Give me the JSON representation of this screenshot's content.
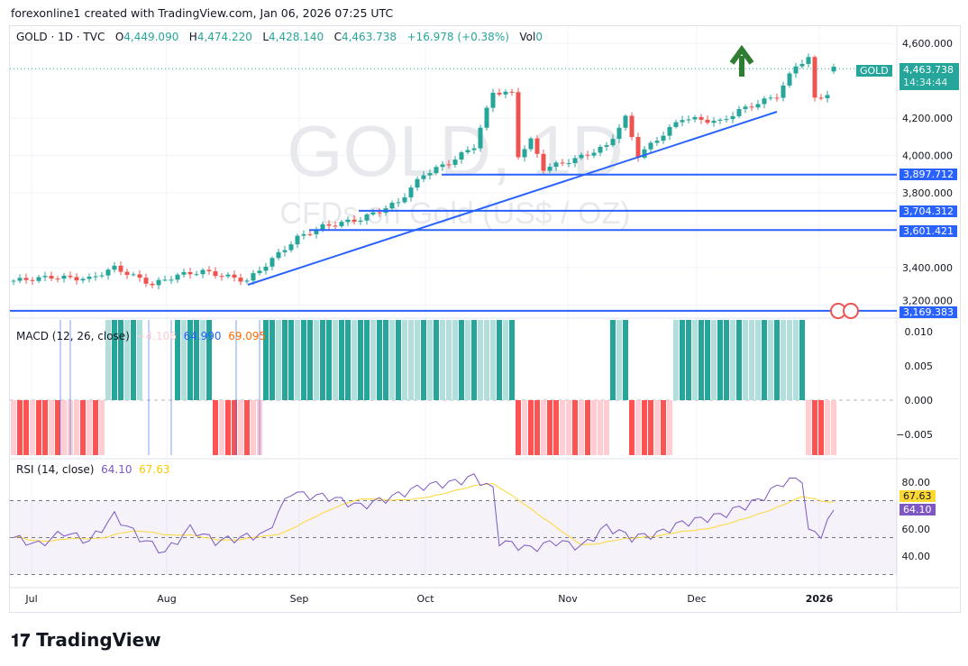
{
  "header": {
    "attribution": "forexonline1 created with TradingView.com, Jan 06, 2026 07:25 UTC"
  },
  "legend": {
    "symbol": "GOLD · 1D · TVC",
    "o_label": "O",
    "open": "4,449.090",
    "h_label": "H",
    "high": "4,474.220",
    "l_label": "L",
    "low": "4,428.140",
    "c_label": "C",
    "close": "4,463.738",
    "change": "+16.978 (+0.38%)",
    "vol_label": "Vol",
    "vol": "0"
  },
  "watermark": {
    "title": "GOLD, 1D",
    "subtitle": "CFDs on Gold (US$ / OZ)"
  },
  "price_axis": {
    "ticks": [
      "4,600.000",
      "4,200.000",
      "4,000.000",
      "3,800.000",
      "3,400.000",
      "3,200.000"
    ],
    "tick_values": [
      4600,
      4200,
      4000,
      3800,
      3400,
      3200
    ],
    "symbol_tag": "GOLD",
    "last_price": "4,463.738",
    "countdown": "14:34:44",
    "level_tags": [
      "3,897.712",
      "3,704.312",
      "3,601.421",
      "3,169.383"
    ],
    "level_values": [
      3897.712,
      3704.312,
      3601.421,
      3169.383
    ]
  },
  "time_axis": {
    "labels": [
      "Jul",
      "Aug",
      "Sep",
      "Oct",
      "Nov",
      "Dec",
      "2026"
    ]
  },
  "macd": {
    "label": "MACD (12, 26, close)",
    "hist": "−4.106",
    "macd": "64.990",
    "signal": "69.095",
    "ticks": [
      "0.010",
      "0.005",
      "0.000",
      "−0.005"
    ],
    "tick_values": [
      0.01,
      0.005,
      0,
      -0.005
    ]
  },
  "rsi": {
    "label": "RSI (14, close)",
    "value": "64.10",
    "ma": "67.63",
    "ticks": [
      "80.00",
      "60.00",
      "40.00"
    ],
    "tick_values": [
      80,
      60,
      40
    ],
    "tag_value": "64.10",
    "tag_ma": "67.63"
  },
  "colors": {
    "up": "#26a69a",
    "down": "#ef5350",
    "line": "#2962ff",
    "rsi": "#7e57c2",
    "rsi_ma": "#fdd835"
  },
  "chart_data": {
    "type": "candlestick",
    "price_keypoints": [
      [
        0,
        3330
      ],
      [
        6,
        3350
      ],
      [
        12,
        3340
      ],
      [
        16,
        3400
      ],
      [
        22,
        3310
      ],
      [
        26,
        3360
      ],
      [
        30,
        3380
      ],
      [
        37,
        3330
      ],
      [
        45,
        3560
      ],
      [
        49,
        3620
      ],
      [
        55,
        3660
      ],
      [
        61,
        3750
      ],
      [
        65,
        3900
      ],
      [
        69,
        3960
      ],
      [
        73,
        4050
      ],
      [
        76,
        4340
      ],
      [
        79,
        4330
      ],
      [
        80,
        4000
      ],
      [
        82,
        4080
      ],
      [
        84,
        3930
      ],
      [
        89,
        3980
      ],
      [
        94,
        4050
      ],
      [
        97,
        4200
      ],
      [
        99,
        4000
      ],
      [
        106,
        4200
      ],
      [
        112,
        4180
      ],
      [
        115,
        4240
      ],
      [
        121,
        4320
      ],
      [
        124,
        4480
      ],
      [
        126,
        4520
      ],
      [
        127,
        4300
      ],
      [
        129,
        4330
      ],
      [
        130,
        4464
      ]
    ],
    "rsi_keypoints": [
      [
        0,
        50
      ],
      [
        4,
        46
      ],
      [
        8,
        53
      ],
      [
        12,
        48
      ],
      [
        16,
        62
      ],
      [
        20,
        50
      ],
      [
        24,
        42
      ],
      [
        28,
        55
      ],
      [
        32,
        48
      ],
      [
        36,
        50
      ],
      [
        40,
        52
      ],
      [
        44,
        75
      ],
      [
        46,
        73
      ],
      [
        50,
        72
      ],
      [
        55,
        67
      ],
      [
        60,
        72
      ],
      [
        65,
        78
      ],
      [
        70,
        80
      ],
      [
        73,
        83
      ],
      [
        76,
        76
      ],
      [
        77,
        48
      ],
      [
        82,
        44
      ],
      [
        86,
        48
      ],
      [
        90,
        45
      ],
      [
        94,
        56
      ],
      [
        98,
        50
      ],
      [
        102,
        52
      ],
      [
        106,
        58
      ],
      [
        112,
        62
      ],
      [
        118,
        70
      ],
      [
        122,
        80
      ],
      [
        125,
        82
      ],
      [
        126,
        53
      ],
      [
        128,
        52
      ],
      [
        130,
        64.1
      ]
    ],
    "macd_segments": [
      [
        0,
        14,
        -1
      ],
      [
        15,
        20,
        1
      ],
      [
        21,
        26,
        0
      ],
      [
        26,
        31,
        1
      ],
      [
        32,
        39,
        -1
      ],
      [
        40,
        79,
        1
      ],
      [
        80,
        94,
        -1
      ],
      [
        95,
        97,
        1
      ],
      [
        98,
        104,
        -1
      ],
      [
        105,
        125,
        1
      ],
      [
        126,
        130,
        -1
      ]
    ]
  }
}
